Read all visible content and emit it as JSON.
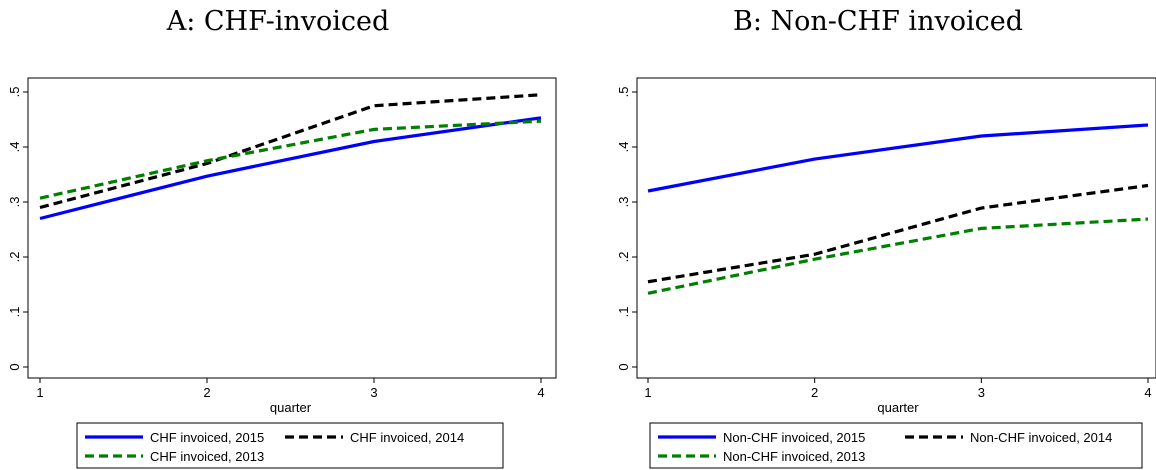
{
  "panels": [
    {
      "title": "A: CHF-invoiced"
    },
    {
      "title": "B: Non-CHF invoiced"
    }
  ],
  "chart_data": [
    {
      "type": "line",
      "title": "A: CHF-invoiced",
      "xlabel": "quarter",
      "ylabel": "",
      "x": [
        1,
        2,
        3,
        4
      ],
      "xticks": [
        "1",
        "2",
        "3",
        "4"
      ],
      "yticks": [
        "0",
        ".1",
        ".2",
        ".3",
        ".4",
        ".5"
      ],
      "ytick_values": [
        0,
        0.1,
        0.2,
        0.3,
        0.4,
        0.5
      ],
      "xlim": [
        1,
        4
      ],
      "ylim": [
        0,
        0.5
      ],
      "grid": false,
      "legend_position": "bottom",
      "series": [
        {
          "name": "CHF invoiced, 2015",
          "values": [
            0.27,
            0.347,
            0.41,
            0.453
          ],
          "color": "#0000ff",
          "dash": "solid"
        },
        {
          "name": "CHF invoiced, 2014",
          "values": [
            0.29,
            0.37,
            0.475,
            0.495
          ],
          "color": "#000000",
          "dash": "dashed"
        },
        {
          "name": "CHF invoiced, 2013",
          "values": [
            0.307,
            0.375,
            0.432,
            0.447
          ],
          "color": "#008000",
          "dash": "dashed"
        }
      ]
    },
    {
      "type": "line",
      "title": "B: Non-CHF invoiced",
      "xlabel": "quarter",
      "ylabel": "",
      "x": [
        1,
        2,
        3,
        4
      ],
      "xticks": [
        "1",
        "2",
        "3",
        "4"
      ],
      "yticks": [
        "0",
        ".1",
        ".2",
        ".3",
        ".4",
        ".5"
      ],
      "ytick_values": [
        0,
        0.1,
        0.2,
        0.3,
        0.4,
        0.5
      ],
      "xlim": [
        1,
        4
      ],
      "ylim": [
        0,
        0.5
      ],
      "grid": false,
      "legend_position": "bottom",
      "series": [
        {
          "name": "Non-CHF invoiced, 2015",
          "values": [
            0.32,
            0.378,
            0.42,
            0.44
          ],
          "color": "#0000ff",
          "dash": "solid"
        },
        {
          "name": "Non-CHF invoiced, 2014",
          "values": [
            0.155,
            0.205,
            0.289,
            0.33
          ],
          "color": "#000000",
          "dash": "dashed"
        },
        {
          "name": "Non-CHF invoiced, 2013",
          "values": [
            0.134,
            0.196,
            0.252,
            0.269
          ],
          "color": "#008000",
          "dash": "dashed"
        }
      ]
    }
  ]
}
